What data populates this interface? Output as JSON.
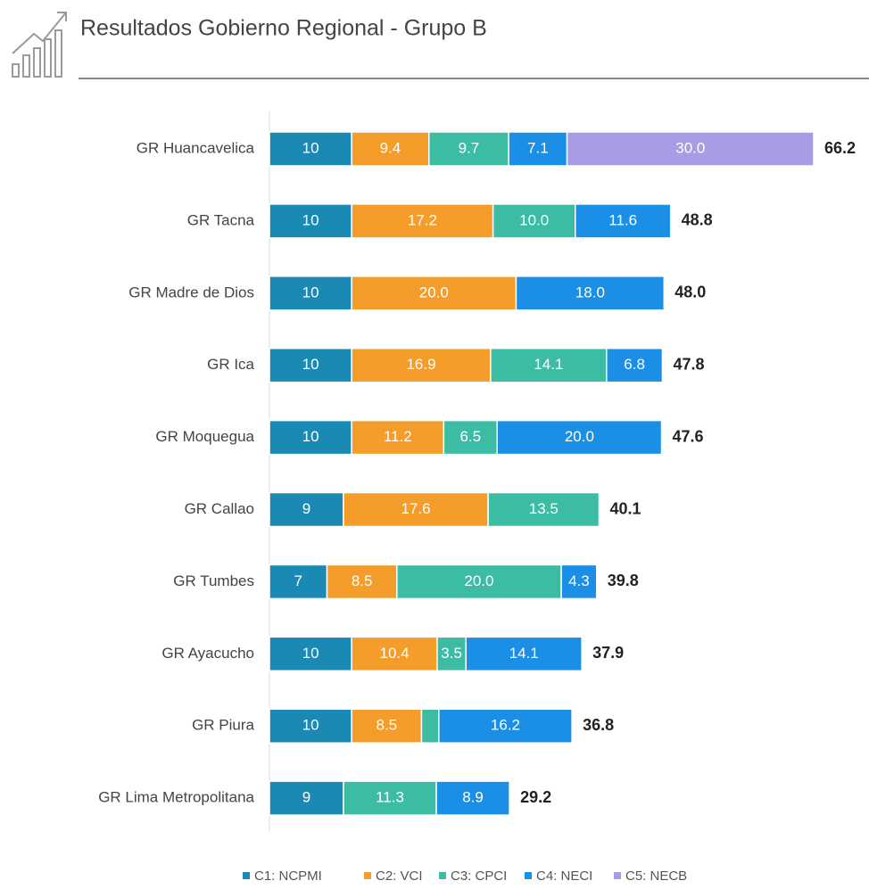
{
  "chart_data": {
    "type": "stacked-bar-horizontal",
    "title": "Resultados Gobierno Regional - Grupo B",
    "categories": [
      "GR Huancavelica",
      "GR Tacna",
      "GR Madre de Dios",
      "GR Ica",
      "GR Moquegua",
      "GR Callao",
      "GR Tumbes",
      "GR Ayacucho",
      "GR Piura",
      "GR Lima Metropolitana"
    ],
    "series": [
      {
        "name": "C1: NCPMI",
        "color": "#1a8ab5",
        "values": [
          10,
          10,
          10,
          10,
          10,
          9,
          7,
          10,
          10,
          9
        ]
      },
      {
        "name": "C2: VCI",
        "color": "#f59d2a",
        "values": [
          9.4,
          17.2,
          20,
          16.9,
          11.2,
          17.6,
          8.5,
          10.4,
          8.5,
          null
        ],
        "value_labels": [
          "9.4",
          "17.2",
          "20.0",
          "16.9",
          "11.2",
          "17.6",
          "8.5",
          "10.4",
          "8.5",
          null
        ]
      },
      {
        "name": "C3: CPCI",
        "color": "#3cbca3",
        "values": [
          9.7,
          10,
          null,
          14.1,
          6.5,
          13.5,
          20,
          3.5,
          2.1,
          11.3
        ],
        "value_labels": [
          "9.7",
          "10.0",
          null,
          "14.1",
          "6.5",
          "13.5",
          "20.0",
          "3.5",
          null,
          "11.3"
        ]
      },
      {
        "name": "C4: NECI",
        "color": "#1b8fe6",
        "values": [
          7.1,
          11.6,
          18,
          6.8,
          20,
          null,
          4.3,
          14.1,
          16.2,
          8.9
        ],
        "value_labels": [
          "7.1",
          "11.6",
          "18.0",
          "6.8",
          "20.0",
          null,
          "4.3",
          "14.1",
          "16.2",
          "8.9"
        ]
      },
      {
        "name": "C5: NECB",
        "color": "#a99ce6",
        "values": [
          30,
          null,
          null,
          null,
          null,
          null,
          null,
          null,
          null,
          null
        ],
        "value_labels": [
          "30.0",
          null,
          null,
          null,
          null,
          null,
          null,
          null,
          null,
          null
        ]
      }
    ],
    "totals": {
      "values": [
        66.2,
        48.8,
        48,
        47.8,
        47.6,
        40.1,
        39.8,
        37.9,
        36.8,
        29.2
      ],
      "value_labels": [
        "66.2",
        "48.8",
        "48.0",
        "47.8",
        "47.6",
        "40.1",
        "39.8",
        "37.9",
        "36.8",
        "29.2"
      ]
    }
  }
}
